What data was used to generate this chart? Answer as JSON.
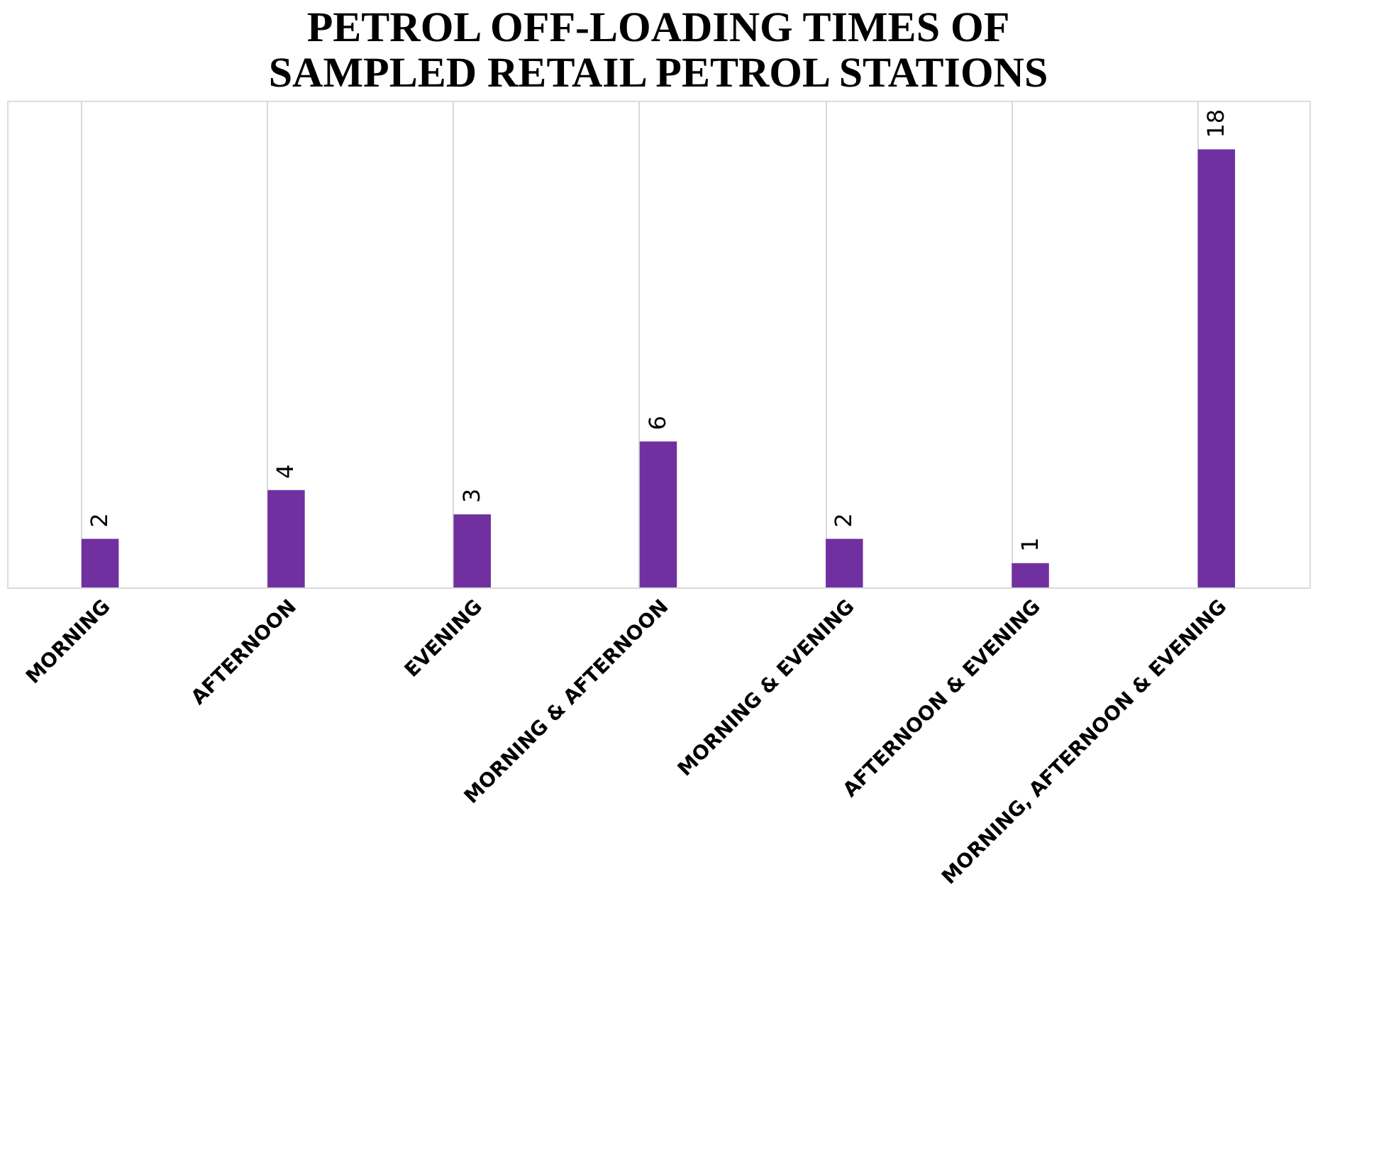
{
  "chart_data": {
    "type": "bar",
    "title": "PETROL OFF-LOADING TIMES OF SAMPLED RETAIL PETROL STATIONS",
    "categories": [
      "MORNING",
      "AFTERNOON",
      "EVENING",
      "MORNING & AFTERNOON",
      "MORNING & EVENING",
      "AFTERNOON & EVENING",
      "MORNING, AFTERNOON & EVENING"
    ],
    "values": [
      2,
      4,
      3,
      6,
      2,
      1,
      18
    ],
    "color": "#7030a0",
    "ylim": [
      0,
      20
    ],
    "data_labels": true,
    "grid": "x",
    "tick_labels": "x"
  }
}
